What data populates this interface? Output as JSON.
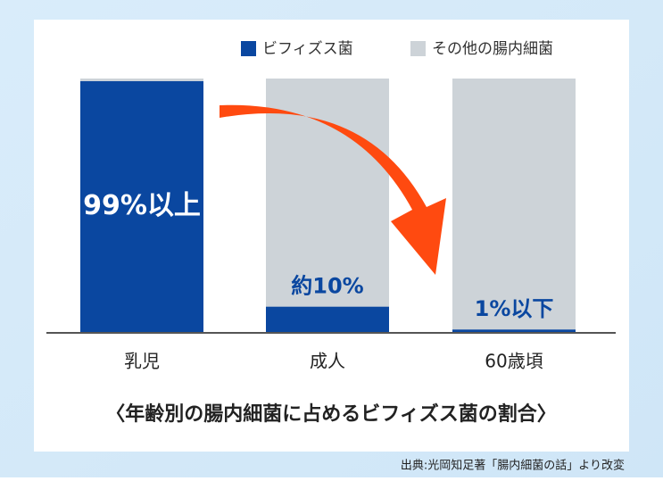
{
  "chart_data": {
    "type": "stacked-bar",
    "title": "〈年齢別の腸内細菌に占めるビフィズス菌の割合〉",
    "source": "出典:光岡知足著「腸内細菌の話」より改変",
    "categories": [
      "乳児",
      "成人",
      "60歳頃"
    ],
    "series": [
      {
        "name": "ビフィズス菌",
        "color": "#0a47a0",
        "values": [
          99,
          10,
          1
        ],
        "value_labels": [
          "99%以上",
          "約10%",
          "1%以下"
        ]
      },
      {
        "name": "その他の腸内細菌",
        "color": "#cdd3d8",
        "values": [
          1,
          90,
          99
        ]
      }
    ],
    "ylim": [
      0,
      100
    ]
  }
}
